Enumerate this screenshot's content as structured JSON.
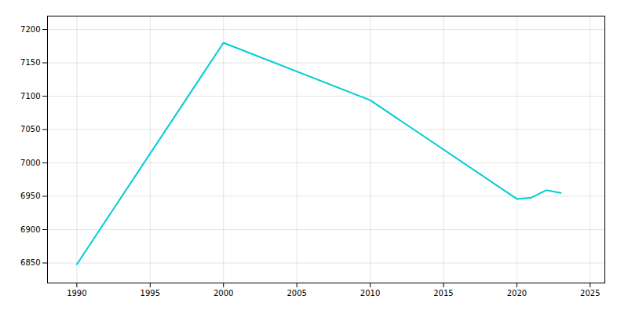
{
  "chart_data": {
    "type": "line",
    "x": [
      1990,
      2000,
      2010,
      2020,
      2021,
      2022,
      2023
    ],
    "values": [
      6848,
      7180,
      7094,
      6946,
      6948,
      6959,
      6955
    ],
    "color": "#00CED1",
    "xlim": [
      1988,
      2026
    ],
    "ylim": [
      6820,
      7220
    ],
    "xticks": [
      1990,
      1995,
      2000,
      2005,
      2010,
      2015,
      2020,
      2025
    ],
    "yticks": [
      6850,
      6900,
      6950,
      7000,
      7050,
      7100,
      7150,
      7200
    ],
    "grid": true
  }
}
